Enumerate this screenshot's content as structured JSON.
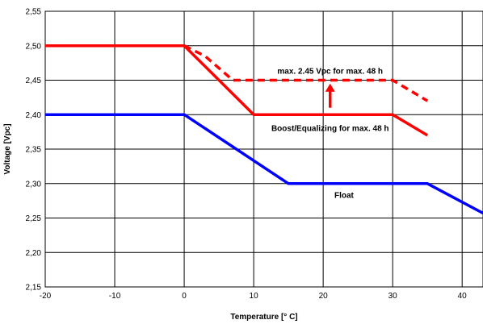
{
  "chart_data": {
    "type": "line",
    "title": "",
    "xlabel": "Temperature [° C]",
    "ylabel": "Voltage [Vpc]",
    "xlim": [
      -20,
      43
    ],
    "ylim": [
      2.15,
      2.55
    ],
    "x_ticks": [
      -20,
      -10,
      0,
      10,
      20,
      30,
      40
    ],
    "x_tick_labels": [
      "-20",
      "-10",
      "0",
      "10",
      "20",
      "30",
      "40"
    ],
    "y_ticks": [
      2.15,
      2.2,
      2.25,
      2.3,
      2.35,
      2.4,
      2.45,
      2.5,
      2.55
    ],
    "y_tick_labels": [
      "2,15",
      "2,20",
      "2,25",
      "2,30",
      "2,35",
      "2,40",
      "2,45",
      "2,50",
      "2,55"
    ],
    "grid": true,
    "legend": "none",
    "series": [
      {
        "color": "#ff0000",
        "style": "solid",
        "points": [
          [
            -20,
            2.5
          ],
          [
            0,
            2.5
          ],
          [
            10,
            2.4
          ],
          [
            30,
            2.4
          ],
          [
            35,
            2.37
          ]
        ]
      },
      {
        "color": "#ff0000",
        "style": "dashed",
        "points": [
          [
            0,
            2.5
          ],
          [
            3,
            2.485
          ],
          [
            7,
            2.45
          ],
          [
            30,
            2.45
          ],
          [
            35,
            2.42
          ]
        ]
      },
      {
        "color": "#0000ff",
        "style": "solid",
        "points": [
          [
            -20,
            2.4
          ],
          [
            0,
            2.4
          ],
          [
            15,
            2.3
          ],
          [
            35,
            2.3
          ],
          [
            43,
            2.257
          ]
        ]
      }
    ],
    "annotations": [
      {
        "text": "max. 2.45 Vpc for max. 48 h",
        "x": 21,
        "y": 2.463
      },
      {
        "text": "Boost/Equalizing for max. 48 h",
        "x": 21,
        "y": 2.38
      },
      {
        "text": "Float",
        "x": 23,
        "y": 2.283
      }
    ],
    "arrow": {
      "x": 21,
      "y_from": 2.41,
      "y_to": 2.445,
      "color": "#ff0000"
    }
  }
}
